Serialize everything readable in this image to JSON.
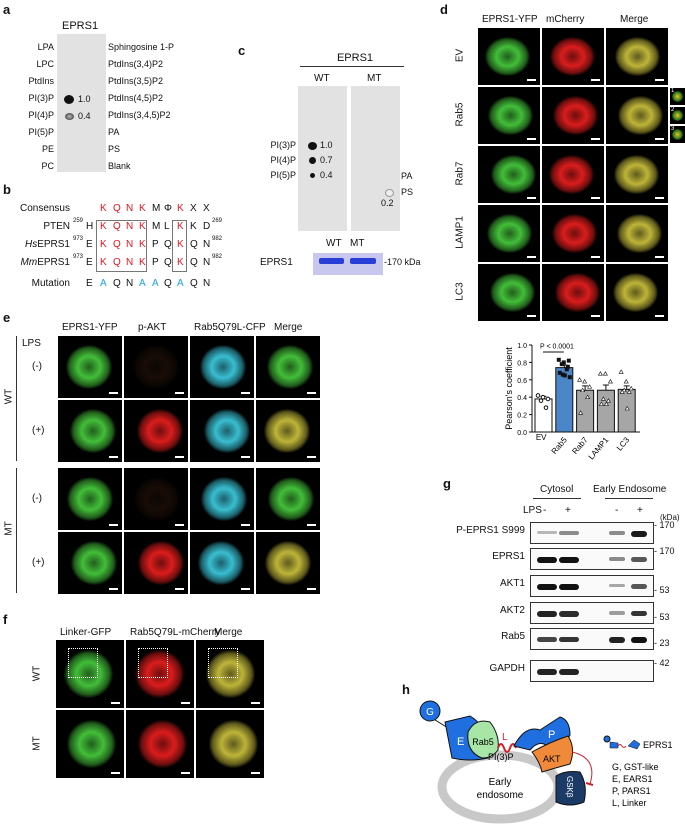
{
  "panel_a": {
    "label": "a",
    "title": "EPRS1",
    "left_lipids": [
      "LPA",
      "LPC",
      "PtdIns",
      "PI(3)P",
      "PI(4)P",
      "PI(5)P",
      "PE",
      "PC"
    ],
    "right_lipids": [
      "Sphingosine 1-P",
      "PtdIns(3,4)P2",
      "PtdIns(3,5)P2",
      "PtdIns(4,5)P2",
      "PtdIns(3,4,5)P2",
      "PA",
      "PS",
      "Blank"
    ],
    "spots": [
      {
        "lipid": "PI(3)P",
        "value": "1.0"
      },
      {
        "lipid": "PI(4)P",
        "value": "0.4"
      }
    ]
  },
  "panel_b": {
    "label": "b",
    "rows": [
      {
        "name": "Consensus",
        "italic_prefix": "",
        "start": "",
        "end": "",
        "residues": [
          "K",
          "Q",
          "N",
          "K",
          "M",
          "Φ",
          "K",
          "X",
          "X"
        ]
      },
      {
        "name": "PTEN",
        "italic_prefix": "",
        "start_num": "259",
        "start": "H",
        "end_num": "269",
        "residues": [
          "K",
          "Q",
          "N",
          "K",
          "M",
          "L",
          "K",
          "K",
          "D"
        ]
      },
      {
        "name": "EPRS1",
        "italic_prefix": "Hs",
        "start_num": "973",
        "start": "E",
        "end_num": "982",
        "residues": [
          "K",
          "Q",
          "N",
          "K",
          "P",
          "Q",
          "K",
          "Q",
          "N"
        ]
      },
      {
        "name": "EPRS1",
        "italic_prefix": "Mm",
        "start_num": "973",
        "start": "E",
        "end_num": "982",
        "residues": [
          "K",
          "Q",
          "N",
          "K",
          "P",
          "Q",
          "K",
          "Q",
          "N"
        ]
      }
    ],
    "mutation": {
      "name": "Mutation",
      "start": "E",
      "residues": [
        "A",
        "Q",
        "N",
        "A",
        "A",
        "Q",
        "A",
        "Q",
        "N"
      ]
    },
    "highlight_color": "#e8141b",
    "mutation_color": "#1aa3e8"
  },
  "panel_c": {
    "label": "c",
    "title": "EPRS1",
    "lanes": [
      "WT",
      "MT"
    ],
    "left_lipids": [
      "PI(3)P",
      "PI(4)P",
      "PI(5)P"
    ],
    "wt_values": [
      "1.0",
      "0.7",
      "0.4"
    ],
    "right_lipids": [
      "PA",
      "PS"
    ],
    "mt_value": "0.2",
    "gel_lanes": [
      "WT",
      "MT"
    ],
    "gel_label": "EPRS1",
    "gel_marker": "-170 kDa"
  },
  "panel_d": {
    "label": "d",
    "columns": [
      "EPRS1-YFP",
      "mCherry",
      "Merge"
    ],
    "rows": [
      "EV",
      "Rab5",
      "Rab7",
      "LAMP1",
      "LC3"
    ],
    "inset_numbers": [
      "1",
      "2",
      "3"
    ]
  },
  "chart_data": {
    "type": "bar",
    "categories": [
      "EV",
      "Rab5",
      "Rab7",
      "LAMP1",
      "LC3"
    ],
    "values": [
      0.38,
      0.74,
      0.48,
      0.48,
      0.49
    ],
    "errors": [
      0.03,
      0.03,
      0.05,
      0.06,
      0.04
    ],
    "points": [
      [
        0.42,
        0.4,
        0.38,
        0.36,
        0.28
      ],
      [
        0.83,
        0.8,
        0.82,
        0.78,
        0.72,
        0.68,
        0.65,
        0.63,
        0.66,
        0.75
      ],
      [
        0.6,
        0.58,
        0.52,
        0.48,
        0.4,
        0.22
      ],
      [
        0.67,
        0.67,
        0.58,
        0.38,
        0.36,
        0.32,
        0.32
      ],
      [
        0.69,
        0.58,
        0.5,
        0.48,
        0.46,
        0.46,
        0.27
      ]
    ],
    "point_markers": [
      "circle",
      "square",
      "triangle",
      "triangle",
      "triangle"
    ],
    "bar_colors": [
      "#ffffff",
      "#4a86c8",
      "#a6a6a6",
      "#a6a6a6",
      "#a6a6a6"
    ],
    "ylabel": "Pearson's coefficient",
    "ylim": [
      0,
      1.0
    ],
    "yticks": [
      "0.0",
      "0.2",
      "0.4",
      "0.6",
      "0.8",
      "1.0"
    ],
    "annotation": {
      "text": "P < 0.0001",
      "italic": "P",
      "between": [
        "EV",
        "Rab5"
      ]
    },
    "grid": false
  },
  "panel_e": {
    "label": "e",
    "lps_label": "LPS",
    "columns": [
      "EPRS1-YFP",
      "p-AKT",
      "Rab5Q79L-CFP",
      "Merge"
    ],
    "groups": [
      "WT",
      "MT"
    ],
    "conditions": [
      "(-)",
      "(+)",
      "(-)",
      "(+)"
    ]
  },
  "panel_f": {
    "label": "f",
    "columns": [
      "Linker-GFP",
      "Rab5Q79L-mCherry",
      "Merge"
    ],
    "rows": [
      "WT",
      "MT"
    ]
  },
  "panel_g": {
    "label": "g",
    "fractions": [
      "Cytosol",
      "Early Endosome"
    ],
    "lps_label": "LPS",
    "lps_states": [
      "-",
      "+",
      "-",
      "+"
    ],
    "unit": "(kDa)",
    "blots": [
      {
        "name": "P-EPRS1 S999",
        "marker": "- 170",
        "bands": [
          0.05,
          0.3,
          0.3,
          0.95
        ]
      },
      {
        "name": "EPRS1",
        "marker": "- 170",
        "bands": [
          1,
          1,
          0.3,
          0.6
        ]
      },
      {
        "name": "AKT1",
        "marker": "- 53",
        "bands": [
          1,
          1,
          0.15,
          0.6
        ]
      },
      {
        "name": "AKT2",
        "marker": "- 53",
        "bands": [
          0.9,
          0.85,
          0.2,
          0.8
        ]
      },
      {
        "name": "Rab5",
        "marker": "- 23",
        "bands": [
          0.7,
          0.8,
          0.9,
          1
        ]
      },
      {
        "name": "GAPDH",
        "marker": "- 42",
        "bands": [
          0.9,
          0.9,
          0,
          0
        ]
      }
    ]
  },
  "panel_h": {
    "label": "h",
    "domains": {
      "G": "G",
      "E": "E",
      "Rab5": "Rab5",
      "L": "L",
      "P": "P",
      "AKT": "AKT",
      "PI3P": "PI(3)P",
      "GSK": "GSKβ"
    },
    "endosome": [
      "Early",
      "endosome"
    ],
    "legend_title": "EPRS1",
    "legend": [
      "G, GST-like",
      "E, EARS1",
      "P, PARS1",
      "L, Linker"
    ],
    "colors": {
      "eprs1": "#1f6fe0",
      "rab5": "#a8e6a8",
      "akt": "#f08a3a",
      "gsk": "#1c3a66",
      "linker": "#d0202a",
      "membrane": "#c8c8c8"
    }
  }
}
